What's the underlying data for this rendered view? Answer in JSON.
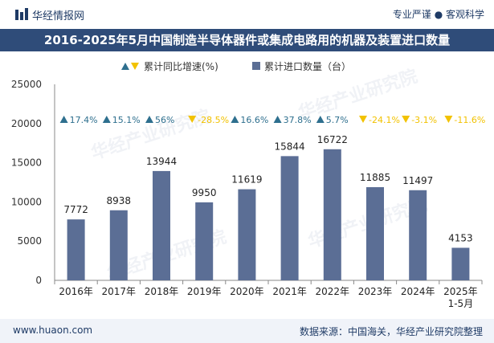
{
  "header": {
    "brand": "华经情报网",
    "tagline": "专业严谨 ● 客观科学"
  },
  "title": "2016-2025年5月中国制造半导体器件或集成电路用的机器及装置进口数量",
  "watermark": "华经产业研究院",
  "legend": {
    "growth_label": "累计同比增速(%)",
    "quantity_label": "累计进口数量（台）"
  },
  "footer": {
    "website": "www.huaon.com",
    "source": "数据来源：中国海关，华经产业研究院整理"
  },
  "colors": {
    "bar": "#5b6e95",
    "positive": "#2e6f8e",
    "negative": "#f2c200",
    "title_bg": "#2f4c79"
  },
  "chart_data": {
    "type": "bar",
    "title": "2016-2025年5月中国制造半导体器件或集成电路用的机器及装置进口数量",
    "categories": [
      "2016年",
      "2017年",
      "2018年",
      "2019年",
      "2020年",
      "2021年",
      "2022年",
      "2023年",
      "2024年",
      "2025年\n1-5月"
    ],
    "series": [
      {
        "name": "累计进口数量（台）",
        "values": [
          7772,
          8938,
          13944,
          9950,
          11619,
          15844,
          16722,
          11885,
          11497,
          4153
        ]
      },
      {
        "name": "累计同比增速(%)",
        "values": [
          17.4,
          15.1,
          56,
          -28.5,
          16.6,
          37.8,
          5.7,
          -24.1,
          -3.1,
          -11.6
        ]
      }
    ],
    "growth_labels": [
      "17.4%",
      "15.1%",
      "56%",
      "-28.5%",
      "16.6%",
      "37.8%",
      "5.7%",
      "-24.1%",
      "-3.1%",
      "-11.6%"
    ],
    "y_ticks": [
      "0",
      "5000",
      "10000",
      "15000",
      "20000",
      "25000"
    ],
    "ylim": [
      0,
      25000
    ],
    "xlabel": "",
    "ylabel": ""
  }
}
